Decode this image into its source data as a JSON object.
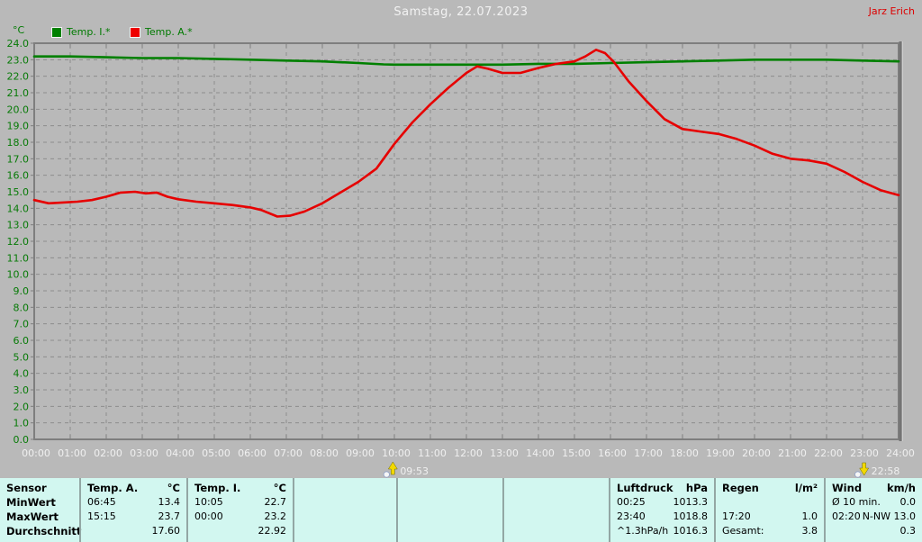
{
  "header": {
    "title": "Samstag, 22.07.2023",
    "watermark": "Jarz Erich"
  },
  "legend": {
    "unit": "°C",
    "items": [
      {
        "label": "Temp. I.*",
        "color": "#008000"
      },
      {
        "label": "Temp. A.*",
        "color": "#e60000"
      }
    ]
  },
  "chart_data": {
    "type": "line",
    "title": "Samstag, 22.07.2023",
    "xlabel": "",
    "ylabel": "°C",
    "xlim": [
      0,
      24
    ],
    "ylim": [
      0,
      24
    ],
    "grid": "dashed both axes, 1 °C / 1 h spacing",
    "legend_position": "top-left",
    "x_tick_labels": [
      "00:00",
      "01:00",
      "02:00",
      "03:00",
      "04:00",
      "05:00",
      "06:00",
      "07:00",
      "08:00",
      "09:00",
      "10:00",
      "11:00",
      "12:00",
      "13:00",
      "14:00",
      "15:00",
      "16:00",
      "17:00",
      "18:00",
      "19:00",
      "20:00",
      "21:00",
      "22:00",
      "23:00",
      "24:00"
    ],
    "y_tick_labels": [
      "0.0",
      "1.0",
      "2.0",
      "3.0",
      "4.0",
      "5.0",
      "6.0",
      "7.0",
      "8.0",
      "9.0",
      "10.0",
      "11.0",
      "12.0",
      "13.0",
      "14.0",
      "15.0",
      "16.0",
      "17.0",
      "18.0",
      "19.0",
      "20.0",
      "21.0",
      "22.0",
      "23.0",
      "24.0"
    ],
    "series": [
      {
        "name": "Temp. I.*",
        "color": "#008000",
        "points": [
          [
            0,
            23.2
          ],
          [
            1,
            23.2
          ],
          [
            2,
            23.15
          ],
          [
            3,
            23.1
          ],
          [
            4,
            23.1
          ],
          [
            5,
            23.05
          ],
          [
            6,
            23.0
          ],
          [
            7,
            22.95
          ],
          [
            8,
            22.9
          ],
          [
            9,
            22.8
          ],
          [
            9.7,
            22.72
          ],
          [
            10,
            22.7
          ],
          [
            11,
            22.7
          ],
          [
            12,
            22.7
          ],
          [
            13,
            22.7
          ],
          [
            14,
            22.75
          ],
          [
            15,
            22.75
          ],
          [
            16,
            22.8
          ],
          [
            17,
            22.85
          ],
          [
            18,
            22.9
          ],
          [
            19,
            22.95
          ],
          [
            20,
            23.0
          ],
          [
            21,
            23.0
          ],
          [
            22,
            23.0
          ],
          [
            23,
            22.95
          ],
          [
            24,
            22.9
          ]
        ]
      },
      {
        "name": "Temp. A.*",
        "color": "#e60000",
        "points": [
          [
            0,
            14.5
          ],
          [
            0.4,
            14.3
          ],
          [
            0.8,
            14.35
          ],
          [
            1.2,
            14.4
          ],
          [
            1.6,
            14.5
          ],
          [
            2,
            14.7
          ],
          [
            2.4,
            14.95
          ],
          [
            2.8,
            15.0
          ],
          [
            3.1,
            14.9
          ],
          [
            3.4,
            14.95
          ],
          [
            3.7,
            14.7
          ],
          [
            4,
            14.55
          ],
          [
            4.5,
            14.4
          ],
          [
            5,
            14.3
          ],
          [
            5.5,
            14.2
          ],
          [
            6,
            14.05
          ],
          [
            6.3,
            13.9
          ],
          [
            6.75,
            13.5
          ],
          [
            7.1,
            13.55
          ],
          [
            7.5,
            13.8
          ],
          [
            8,
            14.3
          ],
          [
            8.5,
            14.95
          ],
          [
            9,
            15.6
          ],
          [
            9.5,
            16.4
          ],
          [
            10,
            17.9
          ],
          [
            10.5,
            19.2
          ],
          [
            11,
            20.3
          ],
          [
            11.5,
            21.3
          ],
          [
            12,
            22.2
          ],
          [
            12.3,
            22.6
          ],
          [
            12.6,
            22.45
          ],
          [
            13,
            22.2
          ],
          [
            13.5,
            22.2
          ],
          [
            14,
            22.5
          ],
          [
            14.5,
            22.75
          ],
          [
            15,
            22.9
          ],
          [
            15.3,
            23.2
          ],
          [
            15.6,
            23.6
          ],
          [
            15.85,
            23.4
          ],
          [
            16.1,
            22.85
          ],
          [
            16.5,
            21.7
          ],
          [
            17,
            20.5
          ],
          [
            17.5,
            19.4
          ],
          [
            18,
            18.8
          ],
          [
            18.5,
            18.65
          ],
          [
            19,
            18.5
          ],
          [
            19.5,
            18.2
          ],
          [
            20,
            17.8
          ],
          [
            20.5,
            17.3
          ],
          [
            21,
            17.0
          ],
          [
            21.5,
            16.9
          ],
          [
            22,
            16.7
          ],
          [
            22.5,
            16.2
          ],
          [
            23,
            15.6
          ],
          [
            23.5,
            15.1
          ],
          [
            24,
            14.8
          ]
        ]
      }
    ],
    "markers": [
      {
        "time": "09:53",
        "hour": 9.883,
        "type": "moon-rise"
      },
      {
        "time": "22:58",
        "hour": 22.967,
        "type": "moon-set"
      }
    ]
  },
  "table": {
    "row_labels": [
      "Sensor",
      "MinWert",
      "MaxWert",
      "Durchschnitt"
    ],
    "columns": [
      {
        "name": "Temp. A.",
        "unit": "°C",
        "rows": [
          [
            "06:45",
            "13.4"
          ],
          [
            "15:15",
            "23.7"
          ],
          [
            "",
            "17.60"
          ]
        ]
      },
      {
        "name": "Temp. I.",
        "unit": "°C",
        "rows": [
          [
            "10:05",
            "22.7"
          ],
          [
            "00:00",
            "23.2"
          ],
          [
            "",
            "22.92"
          ]
        ]
      },
      {
        "name": "",
        "unit": "",
        "rows": [
          [
            "",
            ""
          ],
          [
            "",
            ""
          ],
          [
            "",
            ""
          ]
        ]
      },
      {
        "name": "",
        "unit": "",
        "rows": [
          [
            "",
            ""
          ],
          [
            "",
            ""
          ],
          [
            "",
            ""
          ]
        ]
      },
      {
        "name": "",
        "unit": "",
        "rows": [
          [
            "",
            ""
          ],
          [
            "",
            ""
          ],
          [
            "",
            ""
          ]
        ]
      },
      {
        "name": "Luftdruck",
        "unit": "hPa",
        "rows": [
          [
            "00:25",
            "1013.3"
          ],
          [
            "23:40",
            "1018.8"
          ],
          [
            "^1.3hPa/h",
            "1016.3"
          ]
        ]
      },
      {
        "name": "Regen",
        "unit": "l/m²",
        "rows": [
          [
            "",
            ""
          ],
          [
            "17:20",
            "1.0"
          ],
          [
            "Gesamt:",
            "3.8"
          ]
        ]
      },
      {
        "name": "Wind",
        "unit": "km/h",
        "rows": [
          [
            "Ø 10 min.",
            "0.0"
          ],
          [
            "02:20",
            "N-NW 13.0"
          ],
          [
            "",
            "0.3"
          ]
        ]
      }
    ]
  }
}
